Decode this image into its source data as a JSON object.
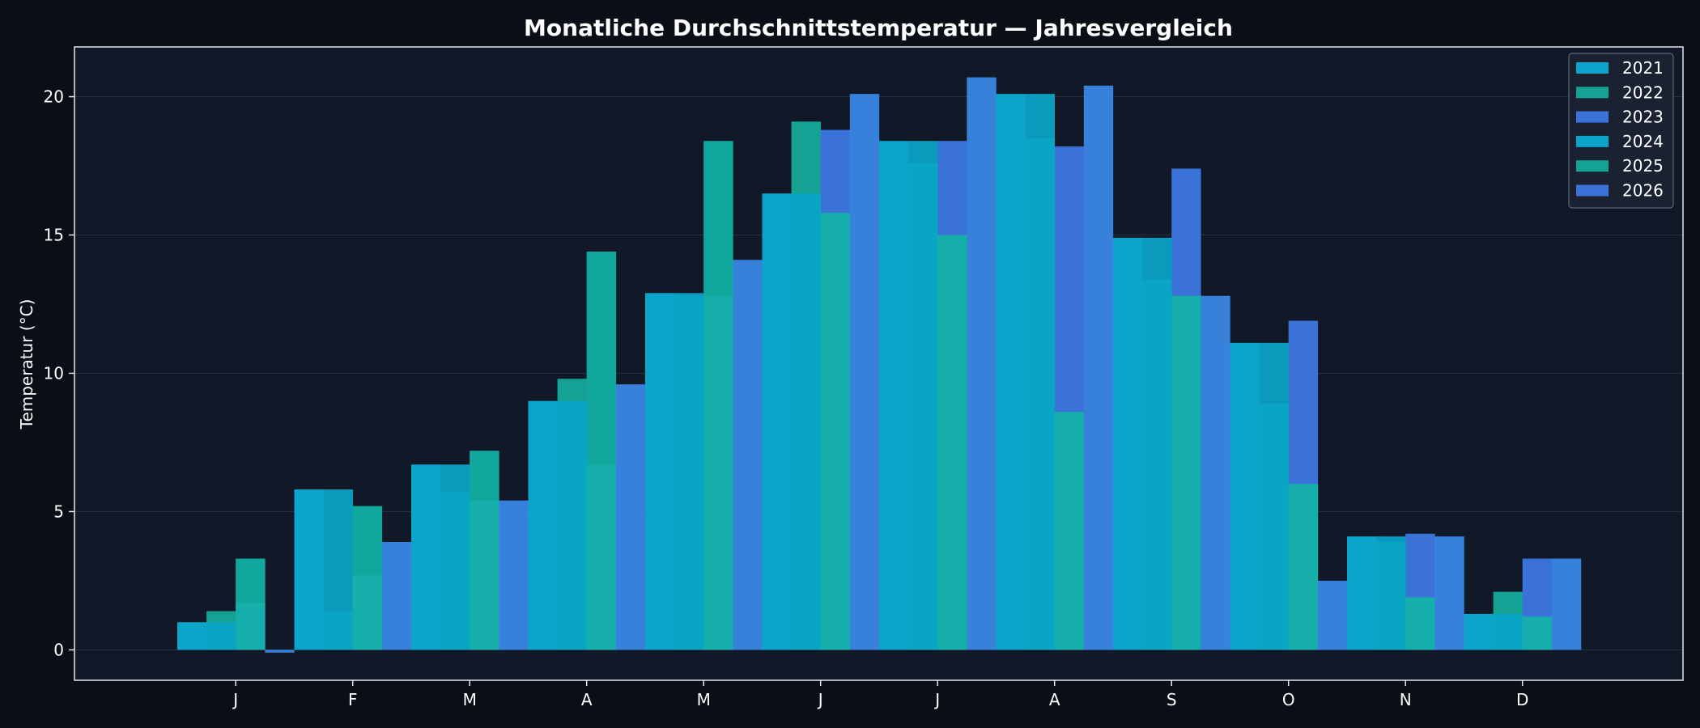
{
  "colors": {
    "background": "#0a0e16",
    "plot_background": "#111827",
    "frame": "#e5e7eb",
    "grid": "#263041",
    "text": "#ffffff",
    "series": [
      "#0aa5c8",
      "#15a294",
      "#3a72d8",
      "#0aa5c8",
      "#15a294",
      "#3a72d8"
    ],
    "bright": [
      "#3a8ae8",
      "#12b3a6"
    ]
  },
  "chart_data": {
    "type": "bar",
    "title": "Monatliche Durchschnittstemperatur — Jahresvergleich",
    "xlabel": "",
    "ylabel": "Temperatur (°C)",
    "categories": [
      "J",
      "F",
      "M",
      "A",
      "M",
      "J",
      "J",
      "A",
      "S",
      "O",
      "N",
      "D"
    ],
    "ylim": [
      -1.1,
      21.8
    ],
    "yticks": [
      0,
      5,
      10,
      15,
      20
    ],
    "grid": true,
    "legend_position": "top-right",
    "series": [
      {
        "name": "2021",
        "values": [
          1.0,
          5.8,
          6.7,
          9.0,
          12.9,
          16.5,
          18.4,
          20.1,
          14.9,
          11.1,
          4.1,
          1.3
        ]
      },
      {
        "name": "2022",
        "values": [
          1.4,
          1.4,
          5.7,
          9.8,
          12.8,
          19.1,
          17.6,
          18.5,
          13.4,
          8.9,
          3.9,
          2.1
        ]
      },
      {
        "name": "2023",
        "values": [
          1.7,
          2.7,
          5.4,
          6.7,
          12.8,
          18.8,
          18.4,
          18.2,
          17.4,
          11.9,
          4.2,
          3.3
        ]
      },
      {
        "name": "2024",
        "values": [
          1.0,
          5.8,
          6.7,
          9.0,
          12.9,
          16.5,
          18.4,
          20.1,
          14.9,
          11.1,
          4.1,
          1.3
        ]
      },
      {
        "name": "2025",
        "values": [
          3.3,
          5.2,
          7.2,
          14.4,
          18.4,
          15.8,
          15.0,
          8.6,
          12.8,
          6.0,
          1.9,
          1.2
        ]
      },
      {
        "name": "2026",
        "values": [
          -0.1,
          3.9,
          5.4,
          9.6,
          14.1,
          20.1,
          20.7,
          20.4,
          12.8,
          2.5,
          4.1,
          3.3
        ]
      }
    ]
  }
}
